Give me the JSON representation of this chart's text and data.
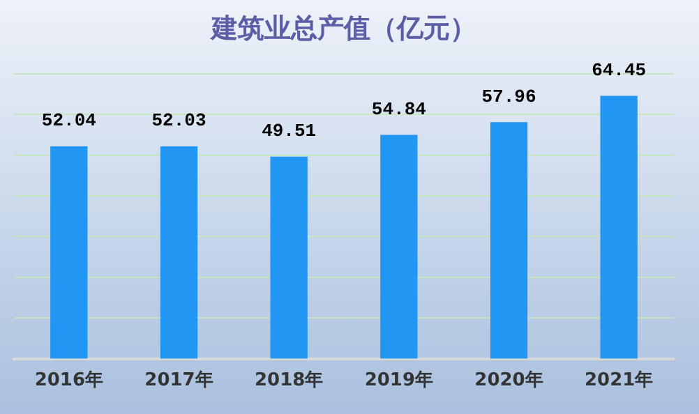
{
  "chart_data": {
    "type": "bar",
    "title": "建筑业总产值（亿元）",
    "categories": [
      "2016年",
      "2017年",
      "2018年",
      "2019年",
      "2020年",
      "2021年"
    ],
    "values": [
      52.04,
      52.03,
      49.51,
      54.84,
      57.96,
      64.45
    ],
    "color": "#2196f3",
    "ylim": [
      0,
      70
    ],
    "yticks": [
      {
        "value": 0,
        "label": null
      },
      {
        "value": 10,
        "label": null
      },
      {
        "value": 20,
        "label": null
      },
      {
        "value": 30,
        "label": null
      },
      {
        "value": 40,
        "label": null
      },
      {
        "value": 50,
        "label": null
      },
      {
        "value": 60,
        "label": null
      },
      {
        "value": 70,
        "label": null
      }
    ],
    "grid": "y",
    "tick_labels": "x",
    "data_labels": true
  }
}
